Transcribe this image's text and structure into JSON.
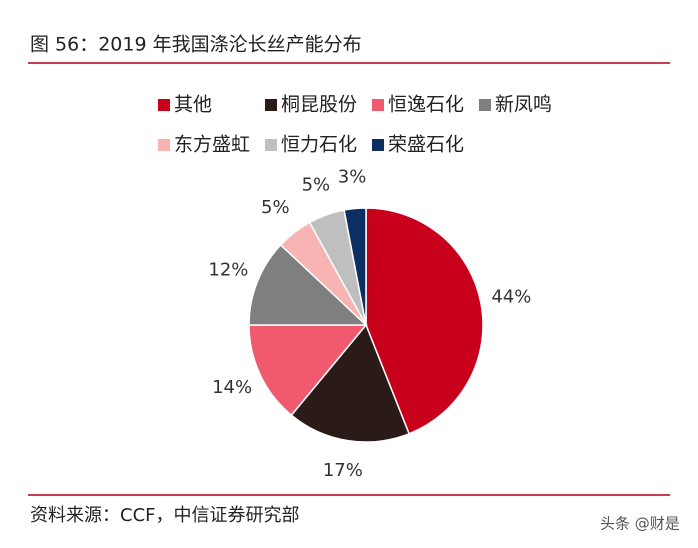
{
  "chart_data": {
    "type": "pie",
    "title": "图 56：2019 年我国涤沦长丝产能分布",
    "categories": [
      "其他",
      "桐昆股份",
      "恒逸石化",
      "新凤鸣",
      "东方盛虹",
      "恒力石化",
      "荣盛石化"
    ],
    "values": [
      44,
      17,
      14,
      12,
      5,
      5,
      3
    ],
    "value_labels": [
      "44%",
      "17%",
      "14%",
      "12%",
      "5%",
      "5%",
      "3%"
    ],
    "colors": [
      "#c9001b",
      "#2b1b18",
      "#f0596e",
      "#7f7f7f",
      "#f8b3b3",
      "#bfbfbf",
      "#0b2f63"
    ],
    "source": "资料来源：CCF，中信证券研究部",
    "watermark": "头条 @财是"
  }
}
